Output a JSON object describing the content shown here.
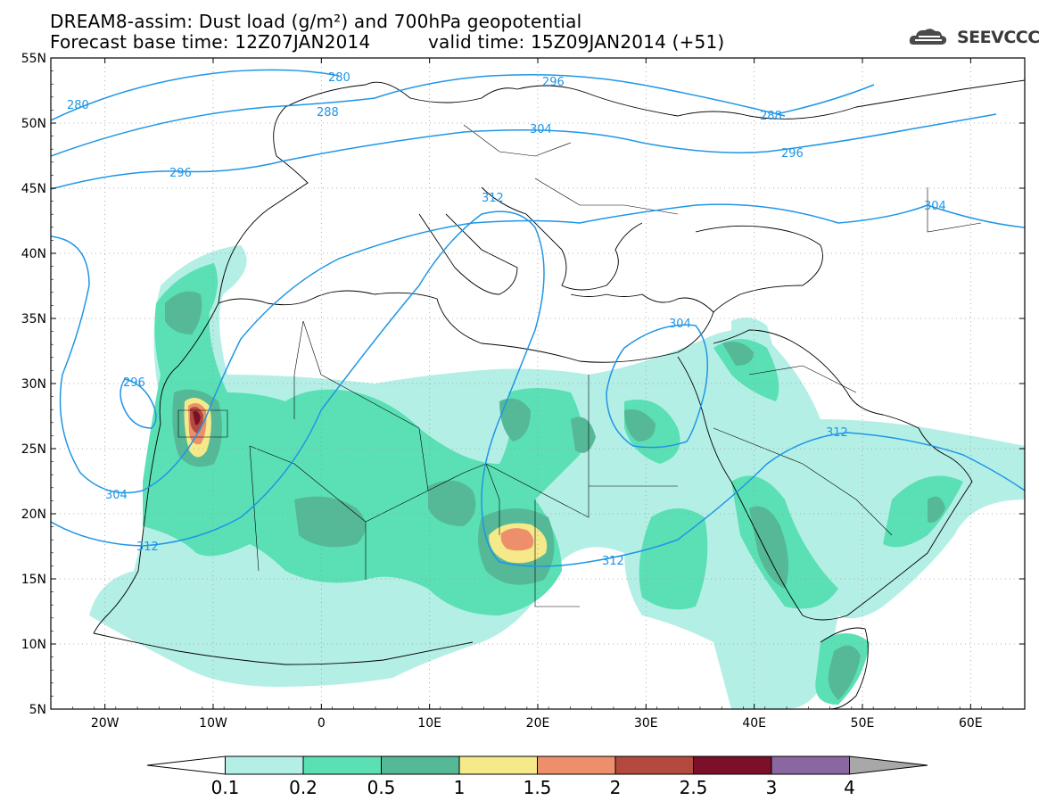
{
  "title": {
    "line1": "DREAM8-assim: Dust load (g/m²) and 700hPa geopotential",
    "line2_left": "Forecast base time: 12Z07JAN2014",
    "line2_right": "valid time: 15Z09JAN2014 (+51)"
  },
  "logo": {
    "text": "SEEVCCC",
    "icon": "cloud-logo-icon"
  },
  "axes": {
    "lat_labels": [
      "55N",
      "50N",
      "45N",
      "40N",
      "35N",
      "30N",
      "25N",
      "20N",
      "15N",
      "10N",
      "5N"
    ],
    "lon_labels": [
      "20W",
      "10W",
      "0",
      "10E",
      "20E",
      "30E",
      "40E",
      "50E",
      "60E"
    ]
  },
  "contour_labels": [
    "280",
    "280",
    "288",
    "288",
    "296",
    "296",
    "296",
    "296",
    "304",
    "304",
    "304",
    "304",
    "312",
    "312",
    "312",
    "312"
  ],
  "colorbar": {
    "colors": [
      "#ffffff",
      "#b4efe6",
      "#5ae0b4",
      "#55b896",
      "#f5e98a",
      "#ec8f6a",
      "#b4493d",
      "#7c0f2a",
      "#8a67a0",
      "#a8a8a8"
    ],
    "labels": [
      "0.1",
      "0.2",
      "0.5",
      "1",
      "1.5",
      "2",
      "2.5",
      "3",
      "4"
    ]
  },
  "chart_data": {
    "type": "map",
    "title": "DREAM8-assim: Dust load (g/m²) and 700hPa geopotential",
    "xlim": [
      -25,
      65
    ],
    "ylim": [
      5,
      55
    ],
    "unit": "g/m²",
    "levels": [
      0.1,
      0.2,
      0.5,
      1,
      1.5,
      2,
      2.5,
      3,
      4
    ],
    "dust_maxima": [
      {
        "lon": -12,
        "lat": 27.5,
        "value_range": "2.5-3"
      },
      {
        "lon": 18,
        "lat": 18,
        "value_range": "1.5-2"
      }
    ],
    "geopotential_contours_dam": [
      280,
      288,
      296,
      304,
      312
    ]
  }
}
